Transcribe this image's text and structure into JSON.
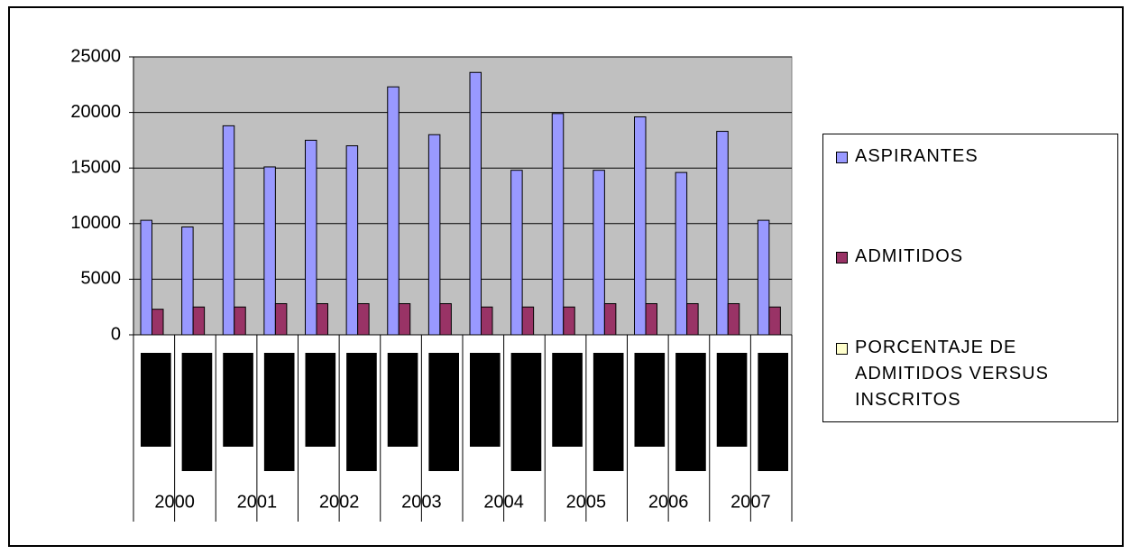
{
  "chart_data": {
    "type": "bar",
    "categories": [
      null,
      null,
      null,
      null,
      null,
      null,
      null,
      null,
      null,
      null,
      null,
      null,
      null,
      null,
      null,
      null
    ],
    "groups": [
      "2000",
      "2001",
      "2002",
      "2003",
      "2004",
      "2005",
      "2006",
      "2007"
    ],
    "series": [
      {
        "name": "ASPIRANTES",
        "color": "#9999ff",
        "values": [
          10300,
          9700,
          18800,
          15100,
          17500,
          17000,
          22300,
          18000,
          23600,
          14800,
          19900,
          14800,
          19600,
          14600,
          18300,
          10300
        ]
      },
      {
        "name": "ADMITIDOS",
        "color": "#993366",
        "values": [
          2300,
          2500,
          2500,
          2800,
          2800,
          2800,
          2800,
          2800,
          2500,
          2500,
          2500,
          2800,
          2800,
          2800,
          2800,
          2500
        ]
      },
      {
        "name": "PORCENTAJE DE ADMITIDOS VERSUS INSCRITOS",
        "color": "#ffffcc",
        "values": [
          0,
          0,
          0,
          0,
          0,
          0,
          0,
          0,
          0,
          0,
          0,
          0,
          0,
          0,
          0,
          0
        ]
      }
    ],
    "ylim": [
      0,
      25000
    ],
    "yticks": [
      0,
      5000,
      10000,
      15000,
      20000,
      25000
    ],
    "grid": true,
    "legend": "right"
  }
}
